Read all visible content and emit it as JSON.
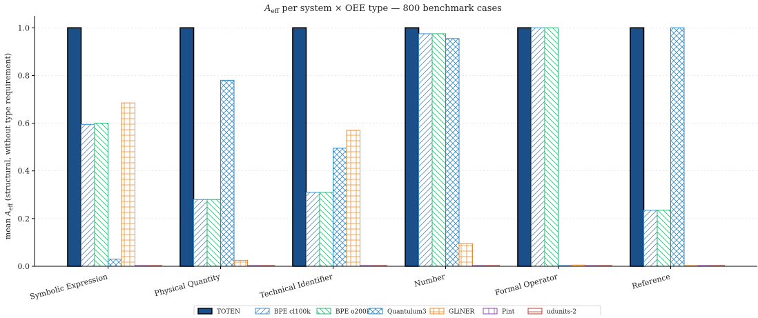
{
  "chart_data": {
    "type": "bar",
    "title_main": "A",
    "title_sub": "eff",
    "title_rest": " per system × OEE type — 800 benchmark cases",
    "ylabel_pre": "mean ",
    "ylabel_var": "A",
    "ylabel_sub": "eff",
    "ylabel_post": " (structural, without type requirement)",
    "xlabel": "",
    "ylim": [
      0,
      1.05
    ],
    "yticks": [
      "0.0",
      "0.2",
      "0.4",
      "0.6",
      "0.8",
      "1.0"
    ],
    "grid": true,
    "legend_position": "bottom-center",
    "categories": [
      "Symbolic Expression",
      "Physical Quantity",
      "Technical Identifier",
      "Number",
      "Formal Operator",
      "Reference"
    ],
    "series": [
      {
        "name": "TOTEN",
        "color": "#1a4f8a",
        "hatch": "solid",
        "values": [
          1.0,
          1.0,
          1.0,
          1.0,
          1.0,
          1.0
        ]
      },
      {
        "name": "BPE cl100k",
        "color": "#3b8fd0",
        "hatch": "forward-diagonal",
        "values": [
          0.595,
          0.28,
          0.31,
          0.975,
          1.0,
          0.235
        ]
      },
      {
        "name": "BPE o200k",
        "color": "#2bb673",
        "hatch": "back-diagonal",
        "values": [
          0.6,
          0.28,
          0.31,
          0.975,
          1.0,
          0.235
        ]
      },
      {
        "name": "Quantulum3",
        "color": "#2d87c8",
        "hatch": "cross-diagonal",
        "values": [
          0.03,
          0.78,
          0.495,
          0.955,
          0.0,
          1.0
        ]
      },
      {
        "name": "GLiNER",
        "color": "#f08a24",
        "hatch": "grid",
        "values": [
          0.685,
          0.025,
          0.57,
          0.095,
          0.005,
          0.0
        ]
      },
      {
        "name": "Pint",
        "color": "#8e44ad",
        "hatch": "vertical",
        "values": [
          0.0,
          0.0,
          0.0,
          0.0,
          0.0,
          0.0
        ]
      },
      {
        "name": "udunits-2",
        "color": "#c0392b",
        "hatch": "horizontal",
        "values": [
          0.0,
          0.0,
          0.0,
          0.0,
          0.0,
          0.0
        ]
      }
    ]
  }
}
